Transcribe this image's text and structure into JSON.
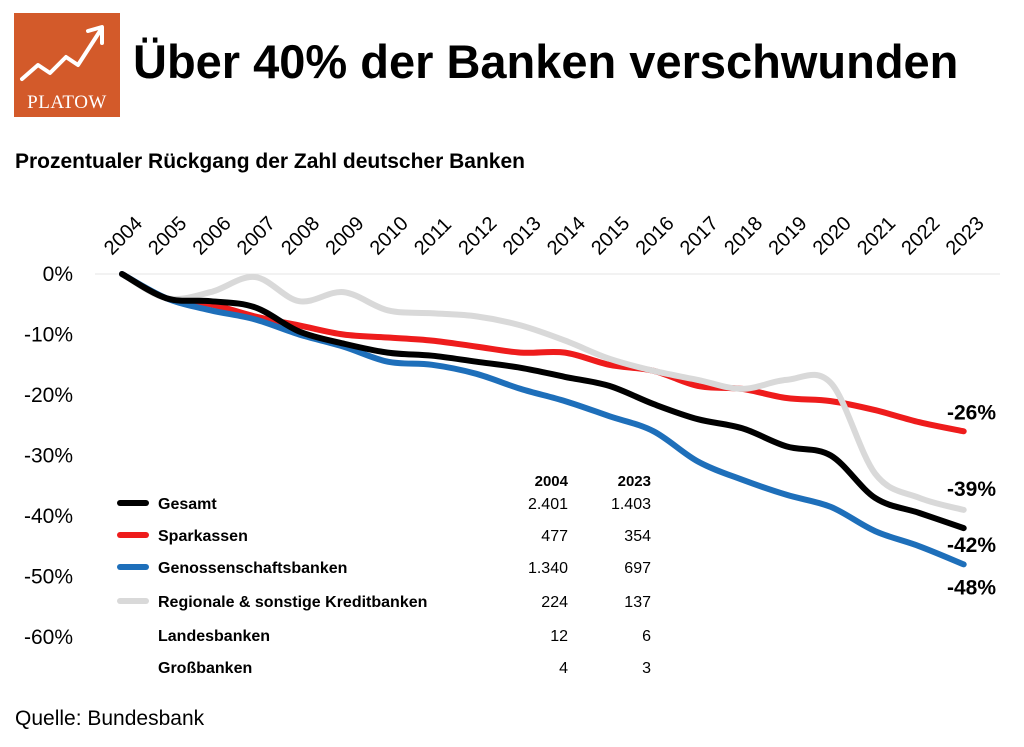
{
  "header": {
    "logo_text": "PLATOW",
    "title": "Über 40% der Banken verschwunden",
    "subtitle": "Prozentualer Rückgang der Zahl deutscher Banken"
  },
  "footer": {
    "source": "Quelle: Bundesbank"
  },
  "colors": {
    "logo": "#d35a2a",
    "gesamt": "#000000",
    "sparkassen": "#ee1c1c",
    "genossenschaftsbanken": "#1e6fba",
    "regionale": "#d9d9d9"
  },
  "chart_data": {
    "type": "line",
    "x": [
      "2004",
      "2005",
      "2006",
      "2007",
      "2008",
      "2009",
      "2010",
      "2011",
      "2012",
      "2013",
      "2014",
      "2015",
      "2016",
      "2017",
      "2018",
      "2019",
      "2020",
      "2021",
      "2022",
      "2023"
    ],
    "y_ticks": [
      "0%",
      "-10%",
      "-20%",
      "-30%",
      "-40%",
      "-50%",
      "-60%"
    ],
    "ylim": [
      -60,
      0
    ],
    "grid": false,
    "series": [
      {
        "name": "Sparkassen",
        "color": "#ee1c1c",
        "end_label": "-26%",
        "values": [
          0,
          -4,
          -5,
          -7,
          -8.5,
          -10,
          -10.5,
          -11,
          -12,
          -13,
          -13,
          -15,
          -16,
          -18.5,
          -19,
          -20.5,
          -21,
          -22.5,
          -24.5,
          -26
        ]
      },
      {
        "name": "Regionale & sonstige Kreditbanken",
        "color": "#d9d9d9",
        "end_label": "-39%",
        "values": [
          0,
          -4,
          -3,
          -0.5,
          -4.5,
          -3,
          -6,
          -6.5,
          -7,
          -8.5,
          -11,
          -14,
          -16,
          -17.5,
          -19,
          -17.5,
          -18,
          -33,
          -37,
          -39
        ]
      },
      {
        "name": "Genossenschaftsbanken",
        "color": "#1e6fba",
        "end_label": "-48%",
        "values": [
          0,
          -4,
          -6,
          -7.5,
          -10,
          -12,
          -14.5,
          -15,
          -16.5,
          -19,
          -21,
          -23.5,
          -26,
          -31,
          -34,
          -36.5,
          -38.5,
          -42.5,
          -45,
          -48
        ]
      },
      {
        "name": "Gesamt",
        "color": "#000000",
        "end_label": "-42%",
        "values": [
          0,
          -4,
          -4.5,
          -5.5,
          -9.5,
          -11.5,
          -13,
          -13.5,
          -14.5,
          -15.5,
          -17,
          -18.5,
          -21.5,
          -24,
          -25.5,
          -28.5,
          -30,
          -37,
          -39.5,
          -42
        ]
      }
    ],
    "table": {
      "headers": [
        "2004",
        "2023"
      ],
      "rows": [
        {
          "name": "Gesamt",
          "color": "#000000",
          "v2004": "2.401",
          "v2023": "1.403"
        },
        {
          "name": "Sparkassen",
          "color": "#ee1c1c",
          "v2004": "477",
          "v2023": "354"
        },
        {
          "name": "Genossenschaftsbanken",
          "color": "#1e6fba",
          "v2004": "1.340",
          "v2023": "697"
        },
        {
          "name": "Regionale & sonstige Kreditbanken",
          "color": "#d9d9d9",
          "v2004": "224",
          "v2023": "137"
        },
        {
          "name": "Landesbanken",
          "color": "",
          "v2004": "12",
          "v2023": "6"
        },
        {
          "name": "Großbanken",
          "color": "",
          "v2004": "4",
          "v2023": "3"
        }
      ]
    }
  }
}
